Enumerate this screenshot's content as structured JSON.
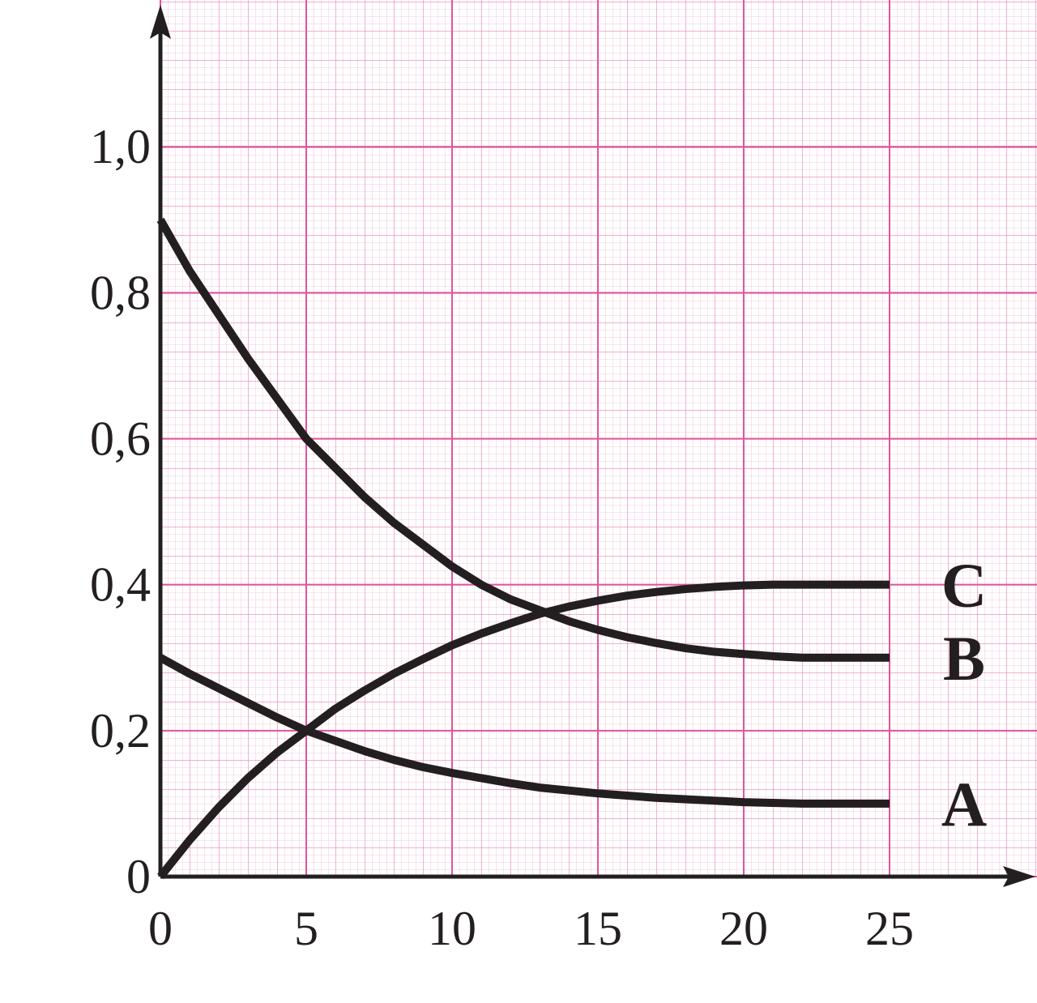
{
  "chart_data": {
    "type": "line",
    "x": [
      0,
      1,
      2,
      3,
      4,
      5,
      6,
      7,
      8,
      9,
      10,
      11,
      12,
      13,
      14,
      15,
      16,
      17,
      18,
      19,
      20,
      21,
      22,
      23,
      24,
      25
    ],
    "series": [
      {
        "name": "A",
        "color": "#231f20",
        "values": [
          0.3,
          0.278,
          0.258,
          0.238,
          0.218,
          0.2,
          0.186,
          0.172,
          0.16,
          0.15,
          0.142,
          0.135,
          0.128,
          0.122,
          0.118,
          0.114,
          0.111,
          0.108,
          0.106,
          0.104,
          0.102,
          0.101,
          0.1,
          0.1,
          0.1,
          0.1
        ]
      },
      {
        "name": "B",
        "color": "#231f20",
        "values": [
          0.9,
          0.83,
          0.77,
          0.71,
          0.655,
          0.6,
          0.56,
          0.52,
          0.485,
          0.455,
          0.425,
          0.4,
          0.38,
          0.365,
          0.35,
          0.338,
          0.328,
          0.32,
          0.313,
          0.308,
          0.305,
          0.302,
          0.3,
          0.3,
          0.3,
          0.3
        ]
      },
      {
        "name": "C",
        "color": "#231f20",
        "values": [
          0,
          0.05,
          0.095,
          0.135,
          0.17,
          0.2,
          0.23,
          0.255,
          0.278,
          0.298,
          0.317,
          0.333,
          0.347,
          0.36,
          0.37,
          0.378,
          0.385,
          0.39,
          0.394,
          0.397,
          0.399,
          0.4,
          0.4,
          0.4,
          0.4,
          0.4
        ]
      }
    ],
    "xlim": [
      0,
      30
    ],
    "ylim": [
      0,
      1.2
    ],
    "xticks": [
      0,
      5,
      10,
      15,
      20,
      25
    ],
    "yticks": [
      0,
      {
        "value": 0.2,
        "label": "0,2"
      },
      {
        "value": 0.4,
        "label": "0,4"
      },
      {
        "value": 0.6,
        "label": "0,6"
      },
      {
        "value": 0.8,
        "label": "0,8"
      },
      {
        "value": 1.0,
        "label": "1,0"
      }
    ],
    "grid": true
  }
}
